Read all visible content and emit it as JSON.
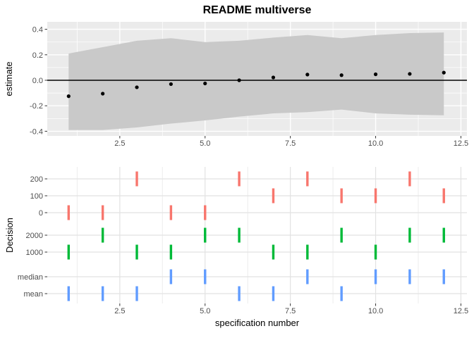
{
  "colors": {
    "panel_bg": "#EBEBEB",
    "grid_top_major": "#FFFFFF",
    "grid_top_minor": "#FFFFFF",
    "grid_bottom_major": "#E2E2E2",
    "grid_bottom_minor": "#ECECEC",
    "ribbon": "#C9C9C9",
    "point": "#000000",
    "zero_line": "#000000",
    "axis_text": "#4D4D4D",
    "axis_tick_mark": "#333333",
    "red": "#F8766D",
    "green": "#00BA38",
    "blue": "#619CFF"
  },
  "chart_data": [
    {
      "type": "scatter",
      "title": "README multiverse",
      "ylabel": "estimate",
      "ylim": [
        -0.44,
        0.46
      ],
      "grid": true,
      "x": [
        1,
        2,
        3,
        4,
        5,
        6,
        7,
        8,
        9,
        10,
        11,
        12
      ],
      "estimate": [
        -0.125,
        -0.105,
        -0.055,
        -0.03,
        -0.025,
        0,
        0.022,
        0.045,
        0.04,
        0.047,
        0.05,
        0.06
      ],
      "ci_upper": [
        0.21,
        0.26,
        0.31,
        0.33,
        0.3,
        0.31,
        0.335,
        0.355,
        0.33,
        0.355,
        0.37,
        0.375
      ],
      "ci_lower": [
        -0.39,
        -0.39,
        -0.37,
        -0.34,
        -0.315,
        -0.285,
        -0.26,
        -0.25,
        -0.23,
        -0.26,
        -0.27,
        -0.275
      ],
      "zero_line": 0,
      "yticks": [
        {
          "v": 0.4,
          "label": "0.4"
        },
        {
          "v": 0.2,
          "label": "0.2"
        },
        {
          "v": 0.0,
          "label": "0.0"
        },
        {
          "v": -0.2,
          "label": "-0.2"
        },
        {
          "v": -0.4,
          "label": "-0.4"
        }
      ],
      "yminor": [
        0.3,
        0.1,
        -0.1,
        -0.3
      ],
      "xticks": [
        {
          "v": 2.5,
          "label": "2.5"
        },
        {
          "v": 5.0,
          "label": "5.0"
        },
        {
          "v": 7.5,
          "label": "7.5"
        },
        {
          "v": 10.0,
          "label": "10.0"
        },
        {
          "v": 12.5,
          "label": "12.5"
        }
      ],
      "xminor": [
        1.25,
        3.75,
        6.25,
        8.75,
        11.25
      ]
    },
    {
      "type": "tick",
      "ylabel": "Decision",
      "xlabel": "specification number",
      "rows": [
        {
          "label": "200",
          "group": "red"
        },
        {
          "label": "100",
          "group": "red"
        },
        {
          "label": "0",
          "group": "red"
        },
        {
          "label": "2000",
          "group": "green"
        },
        {
          "label": "1000",
          "group": "green"
        },
        {
          "label": "median",
          "group": "blue"
        },
        {
          "label": "mean",
          "group": "blue"
        }
      ],
      "xticks": [
        {
          "v": 2.5,
          "label": "2.5"
        },
        {
          "v": 5.0,
          "label": "5.0"
        },
        {
          "v": 7.5,
          "label": "7.5"
        },
        {
          "v": 10.0,
          "label": "10.0"
        },
        {
          "v": 12.5,
          "label": "12.5"
        }
      ],
      "xminor": [
        1.25,
        3.75,
        6.25,
        8.75,
        11.25
      ],
      "specs": [
        {
          "x": 1,
          "red": "0",
          "green": "1000",
          "blue": "mean"
        },
        {
          "x": 2,
          "red": "0",
          "green": "2000",
          "blue": "mean"
        },
        {
          "x": 3,
          "red": "200",
          "green": "1000",
          "blue": "mean"
        },
        {
          "x": 4,
          "red": "0",
          "green": "1000",
          "blue": "median"
        },
        {
          "x": 5,
          "red": "0",
          "green": "2000",
          "blue": "median"
        },
        {
          "x": 6,
          "red": "200",
          "green": "2000",
          "blue": "mean"
        },
        {
          "x": 7,
          "red": "100",
          "green": "1000",
          "blue": "mean"
        },
        {
          "x": 8,
          "red": "200",
          "green": "1000",
          "blue": "median"
        },
        {
          "x": 9,
          "red": "100",
          "green": "2000",
          "blue": "mean"
        },
        {
          "x": 10,
          "red": "100",
          "green": "1000",
          "blue": "median"
        },
        {
          "x": 11,
          "red": "200",
          "green": "2000",
          "blue": "median"
        },
        {
          "x": 12,
          "red": "100",
          "green": "2000",
          "blue": "median"
        }
      ]
    }
  ]
}
